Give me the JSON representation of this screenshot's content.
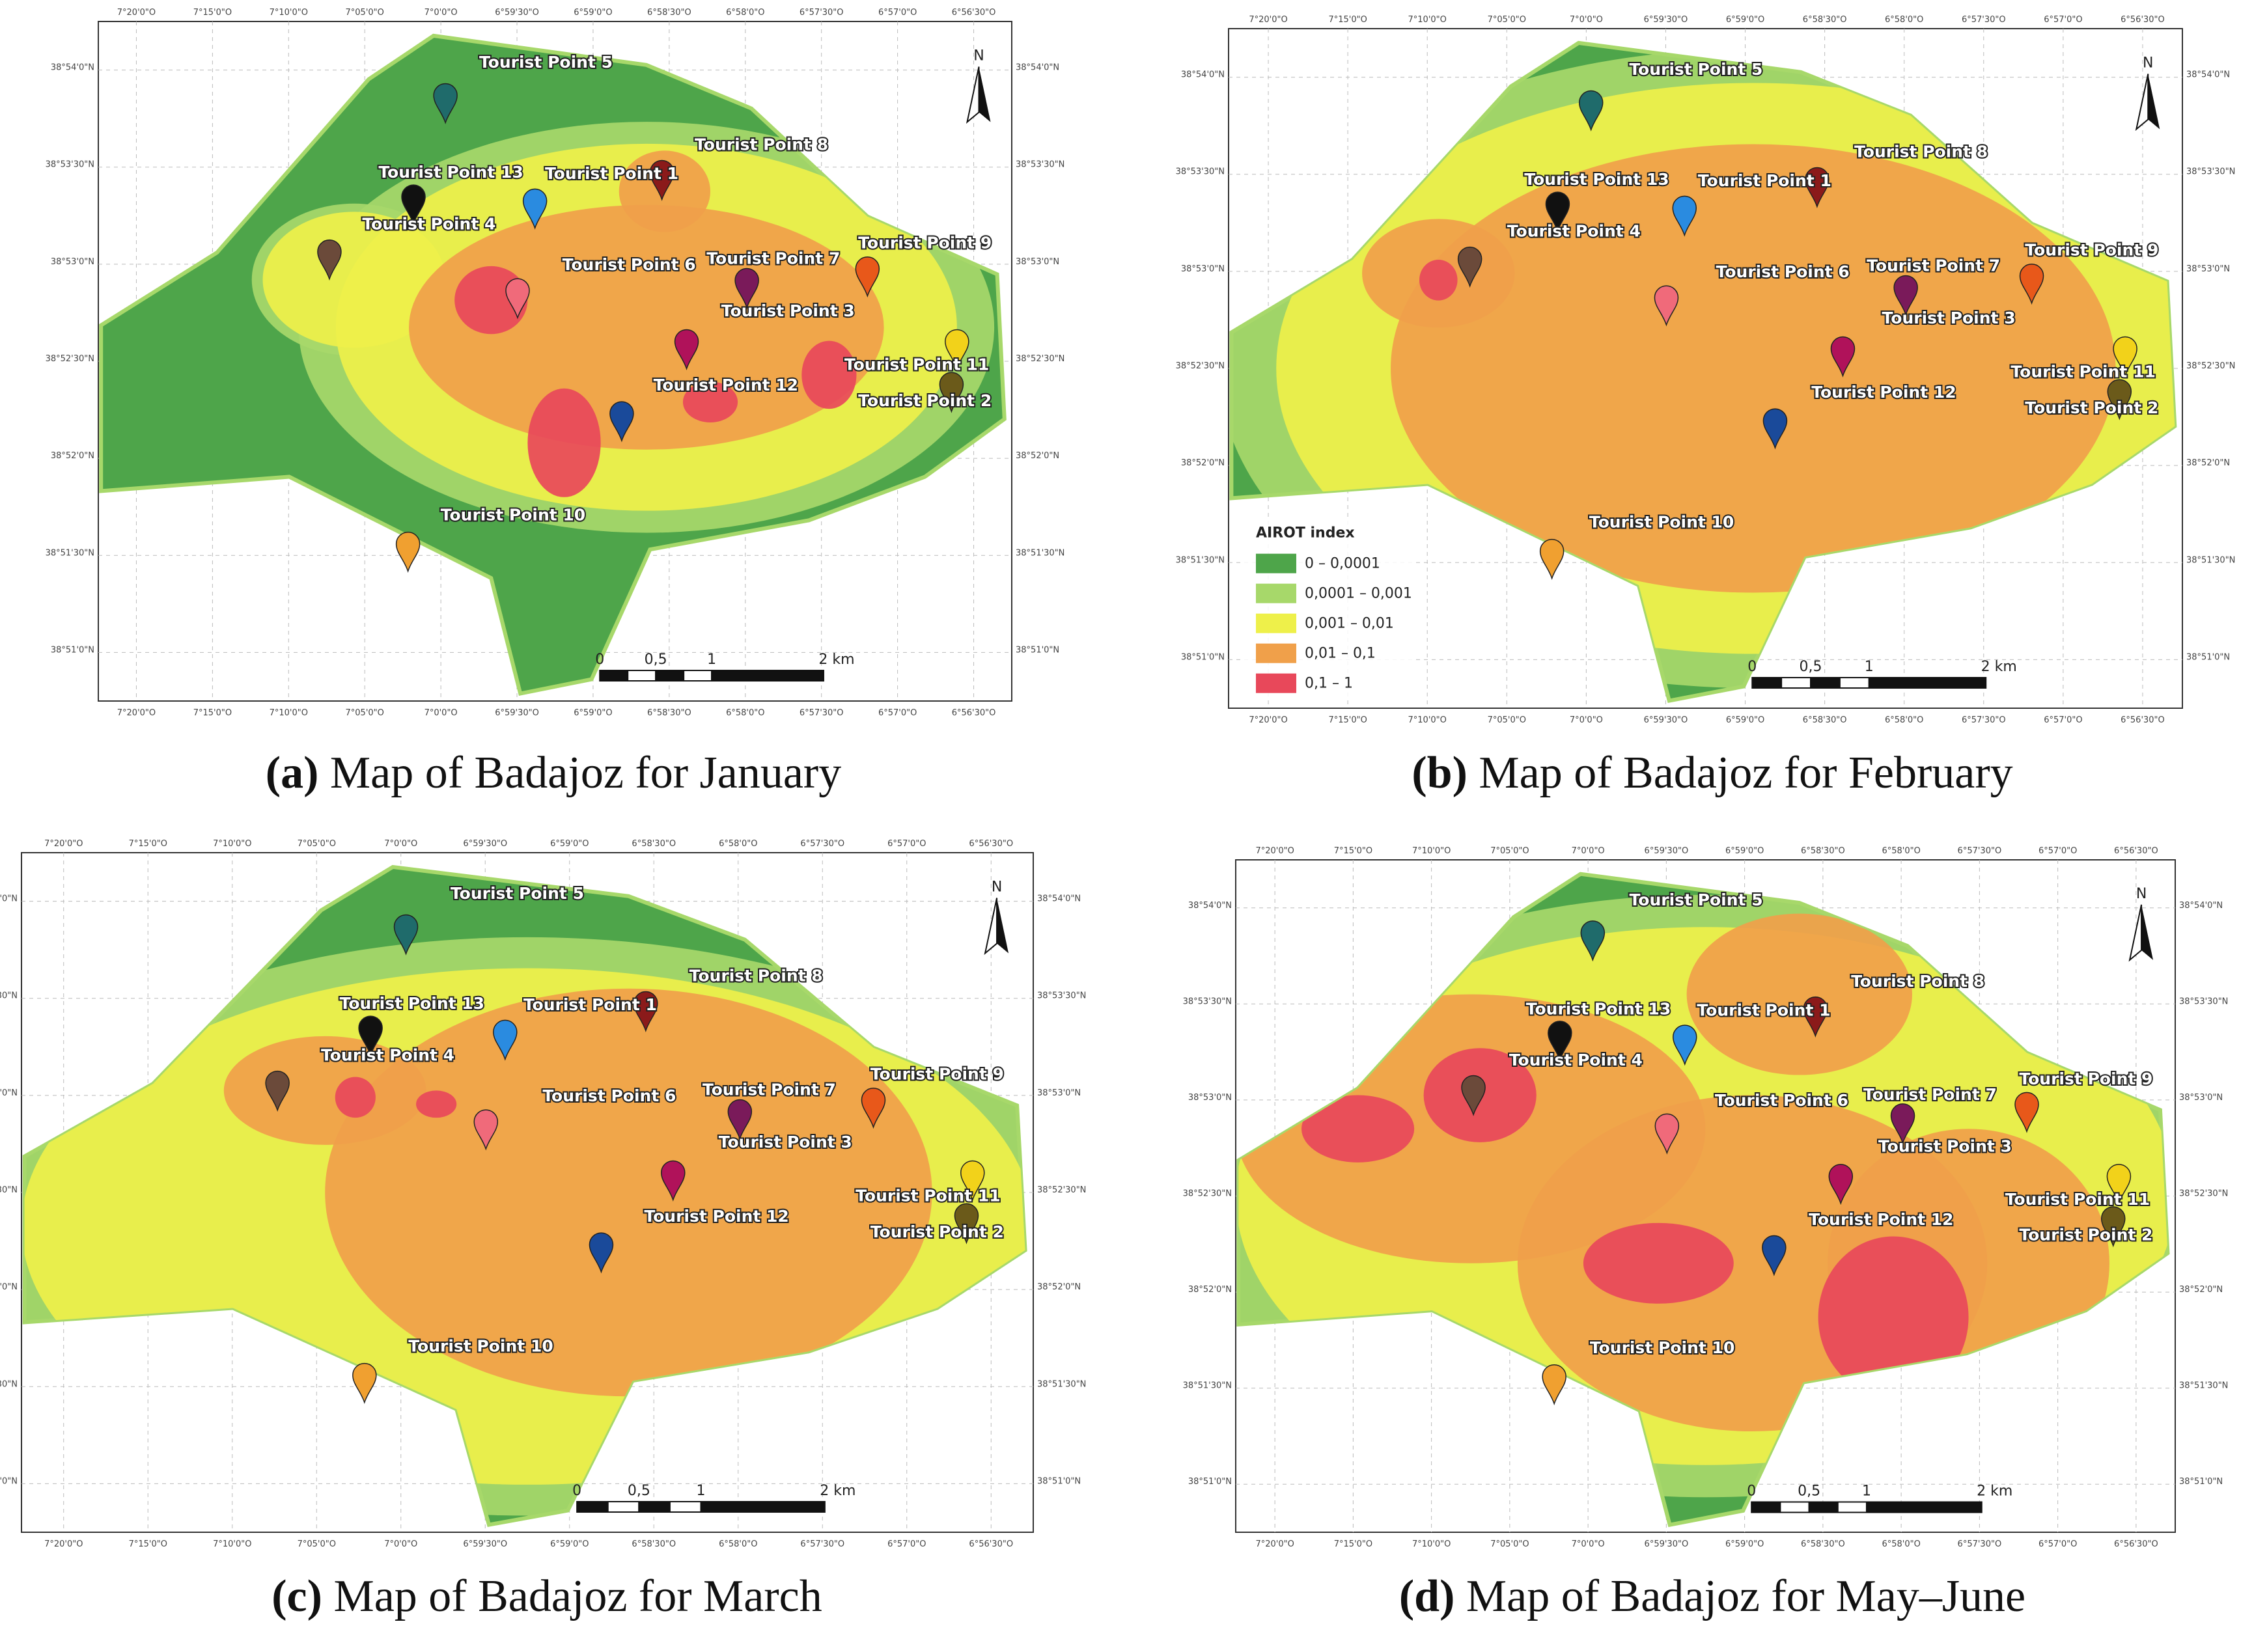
{
  "graticule": {
    "lon": [
      "7°20'0\"O",
      "7°15'0\"O",
      "7°10'0\"O",
      "7°05'0\"O",
      "7°0'0\"O",
      "6°59'30\"O",
      "6°59'0\"O",
      "6°58'30\"O",
      "6°58'0\"O",
      "6°57'30\"O",
      "6°57'0\"O",
      "6°56'30\"O"
    ],
    "lat": [
      "38°54'0\"N",
      "38°53'30\"N",
      "38°53'0\"N",
      "38°52'30\"N",
      "38°52'0\"N",
      "38°51'30\"N",
      "38°51'0\"N"
    ]
  },
  "north": "N",
  "scale_bar": [
    "0",
    "0,5",
    "1",
    "2 km"
  ],
  "legend": {
    "title": "AIROT index",
    "items": [
      "0 – 0,0001",
      "0,0001 – 0,001",
      "0,001 – 0,01",
      "0,01 – 0,1",
      "0,1 – 1"
    ]
  },
  "panels": [
    {
      "letter": "(a)",
      "caption": "Map of Badajoz for January",
      "labels": [
        "Tourist Point 5",
        "Tourist Point 13",
        "Tourist Point 1",
        "Tourist Point 8",
        "Tourist Point 4",
        "Tourist Point 6",
        "Tourist Point 7",
        "Tourist Point 9",
        "Tourist Point 3",
        "Tourist Point 11",
        "Tourist Point 2",
        "Tourist Point 12",
        "Tourist Point 10"
      ]
    },
    {
      "letter": "(b)",
      "caption": "Map of Badajoz for February",
      "labels": [
        "Tourist Point 5",
        "Tourist Point 13",
        "Tourist Point 1",
        "Tourist Point 8",
        "Tourist Point 4",
        "Tourist Point 6",
        "Tourist Point 7",
        "Tourist Point 9",
        "Tourist Point 3",
        "Tourist Point 11",
        "Tourist Point 2",
        "Tourist Point 12",
        "Tourist Point 10"
      ]
    },
    {
      "letter": "(c)",
      "caption": "Map of Badajoz for March",
      "labels": [
        "Tourist Point 5",
        "Tourist Point 13",
        "Tourist Point 1",
        "Tourist Point 8",
        "Tourist Point 4",
        "Tourist Point 6",
        "Tourist Point 7",
        "Tourist Point 9",
        "Tourist Point 3",
        "Tourist Point 11",
        "Tourist Point 2",
        "Tourist Point 12",
        "Tourist Point 10"
      ]
    },
    {
      "letter": "(d)",
      "caption": "Map of Badajoz for May–June",
      "labels": [
        "Tourist Point 5",
        "Tourist Point 13",
        "Tourist Point 1",
        "Tourist Point 8",
        "Tourist Point 4",
        "Tourist Point 6",
        "Tourist Point 7",
        "Tourist Point 9",
        "Tourist Point 3",
        "Tourist Point 11",
        "Tourist Point 2",
        "Tourist Point 12",
        "Tourist Point 10"
      ]
    }
  ]
}
